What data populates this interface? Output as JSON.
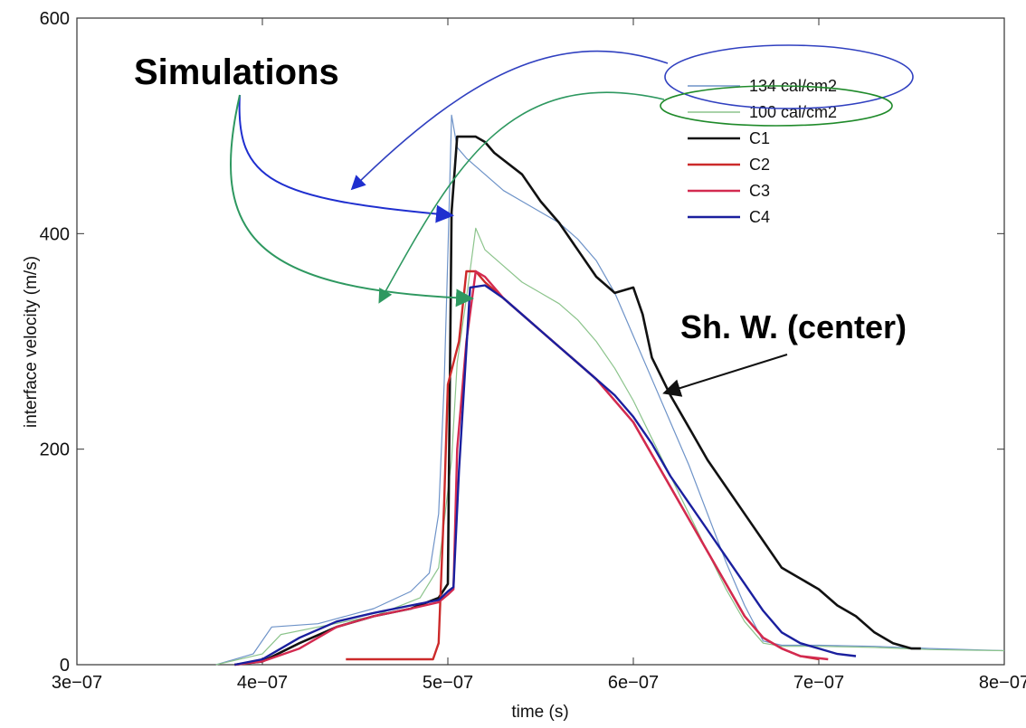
{
  "chart_data": {
    "type": "line",
    "xlabel": "time (s)",
    "ylabel": "interface velocity (m/s)",
    "xlim": [
      3e-07,
      8e-07
    ],
    "ylim": [
      0,
      600
    ],
    "x_ticks": [
      {
        "value": 3e-07,
        "label": "3e−07"
      },
      {
        "value": 4e-07,
        "label": "4e−07"
      },
      {
        "value": 5e-07,
        "label": "5e−07"
      },
      {
        "value": 6e-07,
        "label": "6e−07"
      },
      {
        "value": 7e-07,
        "label": "7e−07"
      },
      {
        "value": 8e-07,
        "label": "8e−07"
      }
    ],
    "y_ticks": [
      {
        "value": 0,
        "label": "0"
      },
      {
        "value": 200,
        "label": "200"
      },
      {
        "value": 400,
        "label": "400"
      },
      {
        "value": 600,
        "label": "600"
      }
    ],
    "grid": false,
    "legend_position": "top-right",
    "series": [
      {
        "name": "134 cal/cm2",
        "color": "#6e93c8",
        "width": 1.2,
        "x": [
          3.75e-07,
          3.95e-07,
          4.05e-07,
          4.3e-07,
          4.6e-07,
          4.8e-07,
          4.9e-07,
          4.95e-07,
          4.98e-07,
          5e-07,
          5.02e-07,
          5.05e-07,
          5.1e-07,
          5.2e-07,
          5.3e-07,
          5.4e-07,
          5.5e-07,
          5.6e-07,
          5.7e-07,
          5.8e-07,
          5.9e-07,
          6e-07,
          6.1e-07,
          6.2e-07,
          6.3e-07,
          6.4e-07,
          6.5e-07,
          6.6e-07,
          6.7e-07,
          6.8e-07,
          7e-07,
          7.3e-07,
          7.6e-07,
          8e-07
        ],
        "y": [
          0,
          10,
          35,
          38,
          52,
          68,
          85,
          140,
          260,
          380,
          510,
          480,
          470,
          455,
          440,
          430,
          420,
          410,
          395,
          375,
          345,
          305,
          265,
          225,
          185,
          140,
          95,
          55,
          22,
          18,
          18,
          17,
          15,
          13
        ]
      },
      {
        "name": "100 cal/cm2",
        "color": "#8cc48c",
        "width": 1.2,
        "x": [
          3.75e-07,
          4e-07,
          4.1e-07,
          4.3e-07,
          4.6e-07,
          4.85e-07,
          4.95e-07,
          5.02e-07,
          5.05e-07,
          5.1e-07,
          5.15e-07,
          5.2e-07,
          5.3e-07,
          5.4e-07,
          5.5e-07,
          5.6e-07,
          5.7e-07,
          5.8e-07,
          5.9e-07,
          6e-07,
          6.1e-07,
          6.2e-07,
          6.3e-07,
          6.4e-07,
          6.5e-07,
          6.6e-07,
          6.7e-07,
          6.8e-07,
          7e-07,
          7.3e-07,
          7.6e-07,
          8e-07
        ],
        "y": [
          0,
          10,
          28,
          35,
          45,
          62,
          90,
          190,
          280,
          340,
          405,
          385,
          370,
          355,
          345,
          335,
          320,
          300,
          275,
          245,
          210,
          175,
          140,
          105,
          70,
          40,
          20,
          17,
          17,
          16,
          14,
          13
        ]
      },
      {
        "name": "C1",
        "color": "#111111",
        "width": 2.6,
        "x": [
          3.85e-07,
          4e-07,
          4.2e-07,
          4.4e-07,
          4.6e-07,
          4.8e-07,
          4.95e-07,
          5e-07,
          5.02e-07,
          5.05e-07,
          5.15e-07,
          5.2e-07,
          5.25e-07,
          5.4e-07,
          5.5e-07,
          5.6e-07,
          5.7e-07,
          5.8e-07,
          5.9e-07,
          6e-07,
          6.05e-07,
          6.1e-07,
          6.2e-07,
          6.3e-07,
          6.4e-07,
          6.5e-07,
          6.6e-07,
          6.7e-07,
          6.8e-07,
          7e-07,
          7.1e-07,
          7.2e-07,
          7.3e-07,
          7.4e-07,
          7.5e-07,
          7.55e-07
        ],
        "y": [
          0,
          3,
          20,
          35,
          45,
          52,
          62,
          75,
          420,
          490,
          490,
          485,
          475,
          455,
          430,
          410,
          385,
          360,
          345,
          350,
          325,
          285,
          250,
          220,
          190,
          165,
          140,
          115,
          90,
          70,
          55,
          45,
          30,
          20,
          15,
          15
        ]
      },
      {
        "name": "C2",
        "color": "#cc2a2a",
        "width": 2.4,
        "x": [
          4.45e-07,
          4.92e-07,
          4.95e-07,
          4.98e-07,
          5e-07,
          5.03e-07,
          5.06e-07,
          5.1e-07,
          5.15e-07,
          5.2e-07,
          5.3e-07,
          5.4e-07,
          5.5e-07,
          5.6e-07,
          5.7e-07,
          5.8e-07,
          5.9e-07,
          6e-07,
          6.1e-07,
          6.2e-07,
          6.3e-07,
          6.4e-07,
          6.5e-07,
          6.6e-07,
          6.7e-07,
          6.8e-07,
          6.9e-07,
          7e-07
        ],
        "y": [
          5,
          5,
          20,
          150,
          260,
          280,
          300,
          365,
          365,
          355,
          340,
          325,
          310,
          295,
          280,
          265,
          245,
          225,
          195,
          165,
          135,
          105,
          75,
          45,
          25,
          15,
          8,
          5
        ]
      },
      {
        "name": "C3",
        "color": "#d32a50",
        "width": 2.4,
        "x": [
          3.85e-07,
          4e-07,
          4.2e-07,
          4.4e-07,
          4.6e-07,
          4.8e-07,
          4.95e-07,
          5e-07,
          5.03e-07,
          5.05e-07,
          5.1e-07,
          5.15e-07,
          5.2e-07,
          5.3e-07,
          5.4e-07,
          5.5e-07,
          5.6e-07,
          5.7e-07,
          5.8e-07,
          5.9e-07,
          6e-07,
          6.1e-07,
          6.2e-07,
          6.3e-07,
          6.4e-07,
          6.5e-07,
          6.6e-07,
          6.7e-07,
          6.8e-07,
          6.9e-07,
          7.05e-07
        ],
        "y": [
          0,
          3,
          15,
          35,
          45,
          52,
          58,
          65,
          70,
          200,
          300,
          365,
          360,
          340,
          325,
          310,
          295,
          280,
          265,
          245,
          225,
          195,
          165,
          135,
          105,
          75,
          45,
          25,
          15,
          8,
          5
        ]
      },
      {
        "name": "C4",
        "color": "#1a1f9e",
        "width": 2.4,
        "x": [
          3.85e-07,
          4e-07,
          4.2e-07,
          4.4e-07,
          4.6e-07,
          4.8e-07,
          4.95e-07,
          5e-07,
          5.03e-07,
          5.06e-07,
          5.12e-07,
          5.2e-07,
          5.3e-07,
          5.4e-07,
          5.5e-07,
          5.6e-07,
          5.7e-07,
          5.8e-07,
          5.9e-07,
          6e-07,
          6.1e-07,
          6.2e-07,
          6.3e-07,
          6.4e-07,
          6.5e-07,
          6.6e-07,
          6.7e-07,
          6.8e-07,
          6.9e-07,
          7e-07,
          7.1e-07,
          7.2e-07
        ],
        "y": [
          0,
          5,
          25,
          40,
          48,
          55,
          60,
          68,
          72,
          180,
          350,
          352,
          340,
          325,
          310,
          295,
          280,
          265,
          250,
          230,
          205,
          175,
          150,
          125,
          100,
          75,
          50,
          30,
          20,
          15,
          10,
          8
        ]
      }
    ]
  },
  "annotations": {
    "simulations": "Simulations",
    "shock_wave": "Sh. W. (center)"
  }
}
